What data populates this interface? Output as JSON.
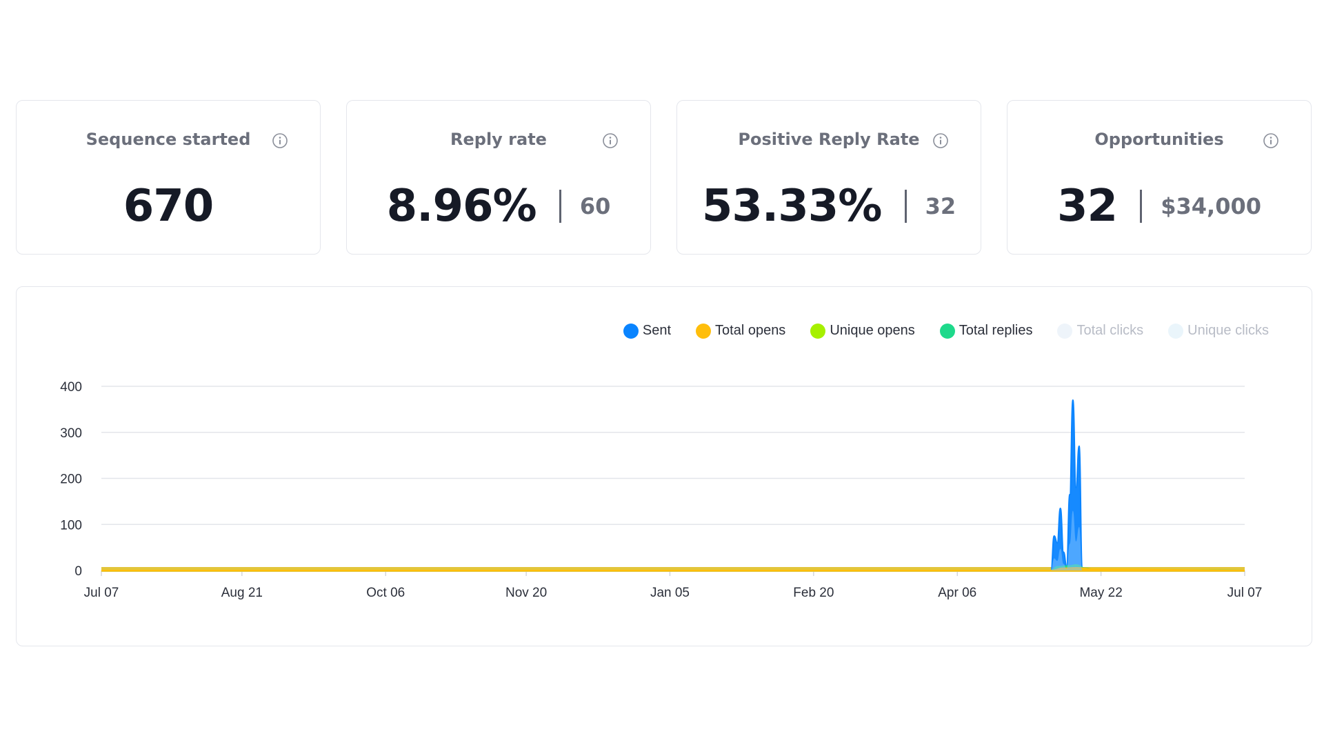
{
  "stats": [
    {
      "label": "Sequence started",
      "value": "670",
      "sub": ""
    },
    {
      "label": "Reply rate",
      "value": "8.96%",
      "sub": "60"
    },
    {
      "label": "Positive Reply Rate",
      "value": "53.33%",
      "sub": "32"
    },
    {
      "label": "Opportunities",
      "value": "32",
      "sub": "$34,000"
    }
  ],
  "icons": {
    "info": "info-circle-icon"
  },
  "chart_data": {
    "type": "area",
    "x_tick_labels": [
      "Jul 07",
      "Aug 21",
      "Oct 06",
      "Nov 20",
      "Jan 05",
      "Feb 20",
      "Apr 06",
      "May 22",
      "Jul 07"
    ],
    "y_ticks": [
      0,
      100,
      200,
      300,
      400
    ],
    "ylim": [
      0,
      400
    ],
    "grid": true,
    "legend_position": "top-right",
    "series": [
      {
        "name": "Sent",
        "color": "#0a84ff",
        "active": true,
        "points": [
          [
            "May 06",
            0
          ],
          [
            "May 07",
            75
          ],
          [
            "May 08",
            60
          ],
          [
            "May 09",
            135
          ],
          [
            "May 10",
            40
          ],
          [
            "May 11",
            10
          ],
          [
            "May 12",
            165
          ],
          [
            "May 13",
            370
          ],
          [
            "May 14",
            180
          ],
          [
            "May 15",
            270
          ],
          [
            "May 16",
            0
          ]
        ]
      },
      {
        "name": "Total opens",
        "color": "#ffbe0b",
        "active": true,
        "points": [
          [
            "Jul 07",
            0
          ],
          [
            "May 06",
            0
          ],
          [
            "May 10",
            5
          ],
          [
            "May 14",
            6
          ],
          [
            "May 20",
            3
          ],
          [
            "Jul 07",
            0
          ]
        ]
      },
      {
        "name": "Unique opens",
        "color": "#a6f000",
        "active": true,
        "points": [
          [
            "May 06",
            0
          ],
          [
            "May 10",
            4
          ],
          [
            "May 14",
            5
          ],
          [
            "May 20",
            2
          ],
          [
            "Jul 07",
            0
          ]
        ]
      },
      {
        "name": "Total replies",
        "color": "#1ed98b",
        "active": true,
        "points": [
          [
            "May 06",
            0
          ],
          [
            "May 08",
            8
          ],
          [
            "May 12",
            10
          ],
          [
            "May 14",
            12
          ],
          [
            "May 17",
            5
          ],
          [
            "May 20",
            2
          ],
          [
            "Jul 07",
            0
          ]
        ]
      },
      {
        "name": "Total clicks",
        "color": "#eef4fa",
        "active": false,
        "points": []
      },
      {
        "name": "Unique clicks",
        "color": "#eaf5fb",
        "active": false,
        "points": []
      }
    ]
  }
}
